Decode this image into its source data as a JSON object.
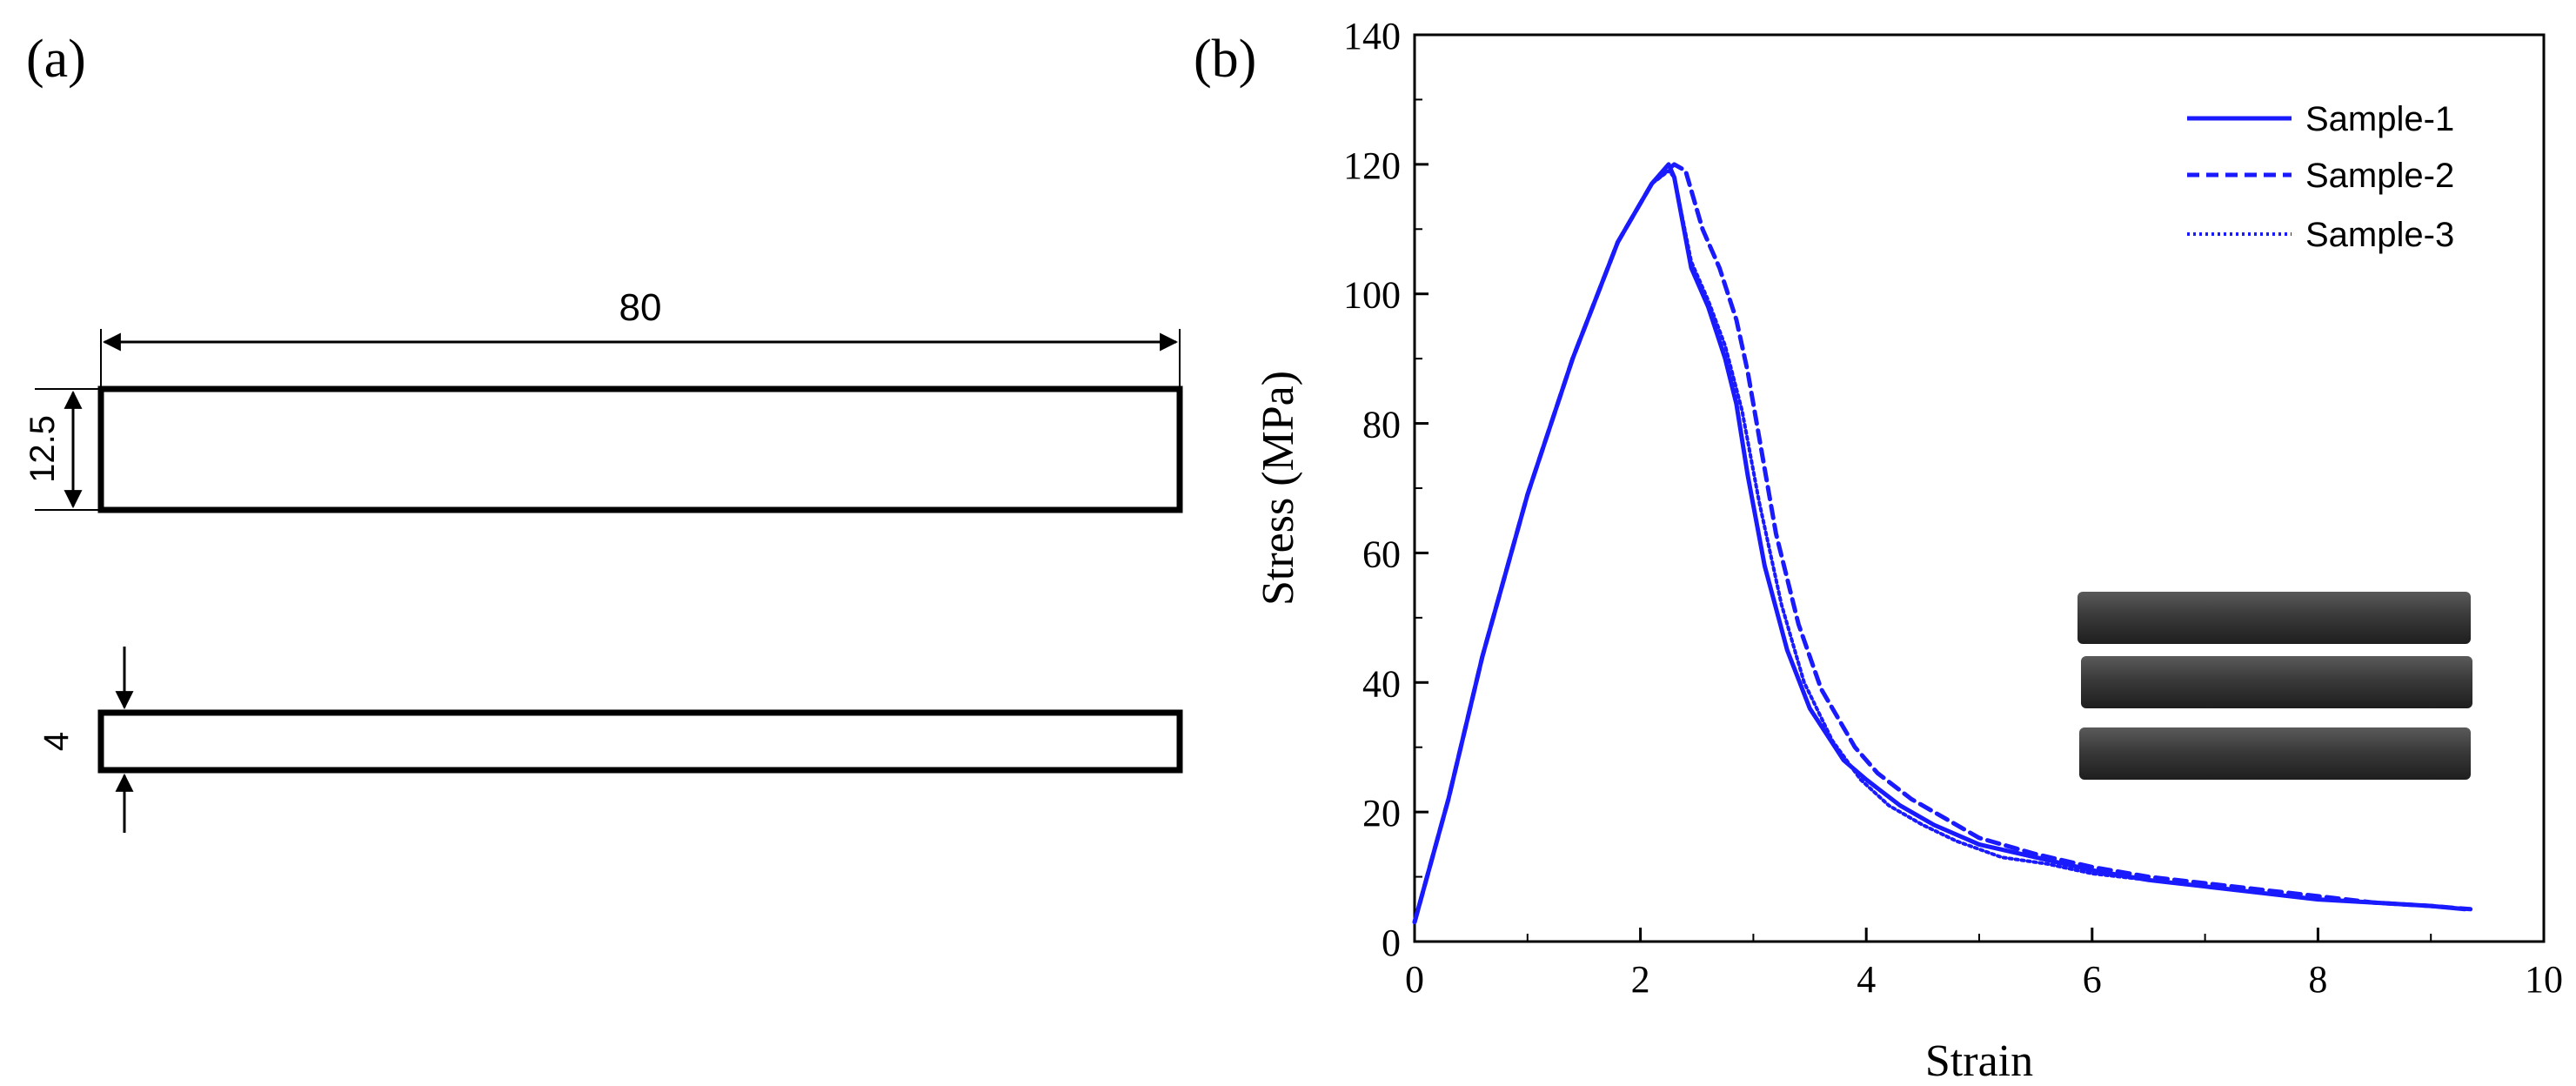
{
  "panel_a": {
    "label": "(a)",
    "length_dim": "80",
    "width_dim": "12.5",
    "thickness_dim": "4"
  },
  "panel_b": {
    "label": "(b)"
  },
  "chart_data": {
    "type": "line",
    "title": "",
    "xlabel": "Strain",
    "ylabel": "Stress (MPa)",
    "xlim": [
      0,
      10
    ],
    "ylim": [
      0,
      140
    ],
    "xticks": [
      0,
      2,
      4,
      6,
      8,
      10
    ],
    "yticks": [
      0,
      20,
      40,
      60,
      80,
      100,
      120,
      140
    ],
    "grid": false,
    "legend_position": "top-right",
    "colors": {
      "series": "#1a1aff",
      "axis": "#000000"
    },
    "series": [
      {
        "name": "Sample-1",
        "style": "solid",
        "x": [
          0,
          0.3,
          0.6,
          1.0,
          1.4,
          1.8,
          2.1,
          2.25,
          2.3,
          2.45,
          2.6,
          2.75,
          2.85,
          2.95,
          3.1,
          3.3,
          3.5,
          3.8,
          4.0,
          4.3,
          4.6,
          5.0,
          5.5,
          6.0,
          6.5,
          7.0,
          7.5,
          8.0,
          8.5,
          9.0,
          9.3
        ],
        "y": [
          3,
          22,
          44,
          69,
          90,
          108,
          117,
          120,
          118,
          104,
          98,
          90,
          83,
          72,
          58,
          45,
          36,
          28,
          25,
          21,
          18,
          15,
          13,
          11,
          9.5,
          8.5,
          7.5,
          6.5,
          6,
          5.5,
          5
        ]
      },
      {
        "name": "Sample-2",
        "style": "dashed",
        "x": [
          0,
          0.3,
          0.6,
          1.0,
          1.4,
          1.8,
          2.1,
          2.3,
          2.4,
          2.55,
          2.7,
          2.85,
          2.95,
          3.05,
          3.2,
          3.4,
          3.6,
          3.9,
          4.1,
          4.4,
          4.7,
          5.0,
          5.5,
          6.0,
          6.5,
          7.0,
          7.5,
          8.0,
          8.5,
          9.0,
          9.35
        ],
        "y": [
          3,
          22,
          44,
          69,
          90,
          108,
          117,
          120,
          119,
          110,
          104,
          96,
          88,
          78,
          63,
          49,
          39,
          30,
          26,
          22,
          19,
          16,
          13.5,
          11.5,
          10,
          9,
          8,
          7,
          6,
          5.5,
          5
        ]
      },
      {
        "name": "Sample-3",
        "style": "dotted",
        "x": [
          0,
          0.3,
          0.6,
          1.0,
          1.4,
          1.8,
          2.1,
          2.25,
          2.3,
          2.45,
          2.6,
          2.75,
          2.9,
          3.05,
          3.25,
          3.45,
          3.7,
          3.95,
          4.2,
          4.5,
          4.8,
          5.2,
          5.6,
          6.0,
          6.5,
          7.0,
          7.5,
          8.0,
          8.5,
          9.0,
          9.3
        ],
        "y": [
          3,
          22,
          44,
          69,
          90,
          108,
          117,
          119,
          118,
          105,
          99,
          92,
          82,
          68,
          52,
          40,
          31,
          25,
          21,
          18,
          15.5,
          13,
          12,
          10.5,
          9.5,
          8.5,
          7.5,
          6.5,
          6,
          5.5,
          5
        ]
      }
    ]
  }
}
